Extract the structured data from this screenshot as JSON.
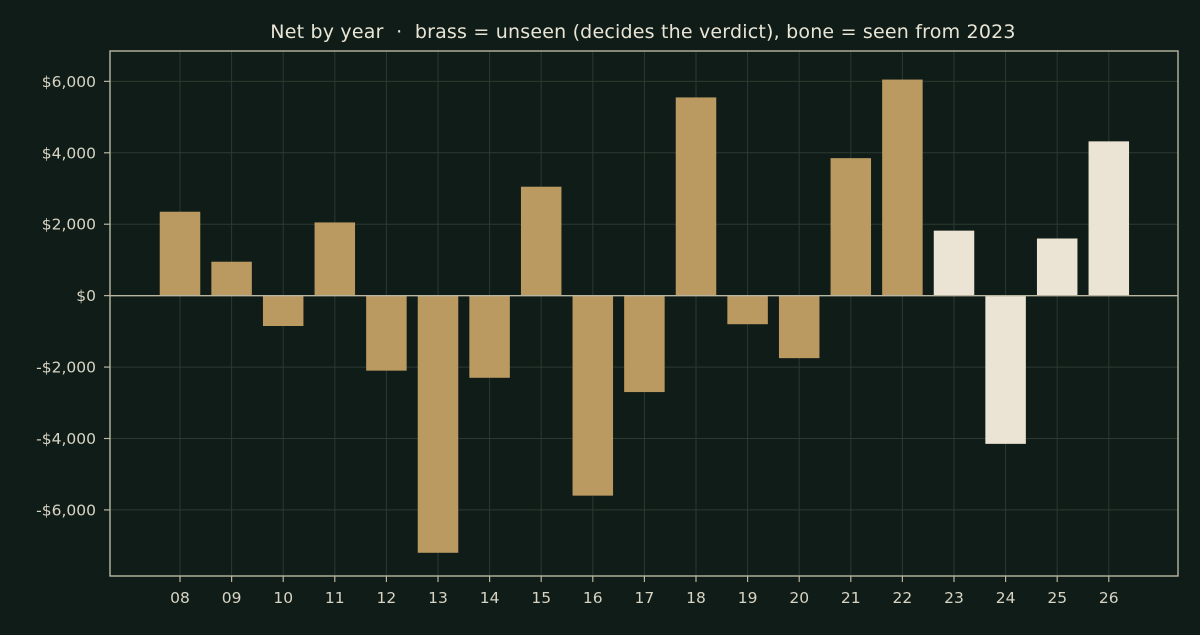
{
  "chart_data": {
    "type": "bar",
    "title": "Net by year  ·  brass = unseen (decides the verdict), bone = seen from 2023",
    "xlabel": "",
    "ylabel": "",
    "categories": [
      "08",
      "09",
      "10",
      "11",
      "12",
      "13",
      "14",
      "15",
      "16",
      "17",
      "18",
      "19",
      "20",
      "21",
      "22",
      "23",
      "24",
      "25",
      "26"
    ],
    "values": [
      2350,
      950,
      -850,
      2050,
      -2100,
      -7200,
      -2300,
      3050,
      -5600,
      -2700,
      5550,
      -800,
      -1750,
      3850,
      6050,
      1820,
      -4150,
      1600,
      4320
    ],
    "seen": [
      false,
      false,
      false,
      false,
      false,
      false,
      false,
      false,
      false,
      false,
      false,
      false,
      false,
      false,
      false,
      true,
      true,
      true,
      true
    ],
    "ylim": [
      -7850,
      6850
    ],
    "yticks": [
      6000,
      4000,
      2000,
      0,
      -2000,
      -4000,
      -6000
    ],
    "ytick_labels": [
      "$6,000",
      "$4,000",
      "$2,000",
      "$0",
      "-$2,000",
      "-$4,000",
      "-$6,000"
    ],
    "grid": true,
    "legend": "none",
    "colors": {
      "background": "#101c17",
      "unseen": "#bb9a62",
      "seen": "#ebe3d3",
      "axis": "#b9b6a2",
      "grid": "#2c3a32",
      "text": "#d7d4c4",
      "title": "#e9e5d6"
    }
  }
}
